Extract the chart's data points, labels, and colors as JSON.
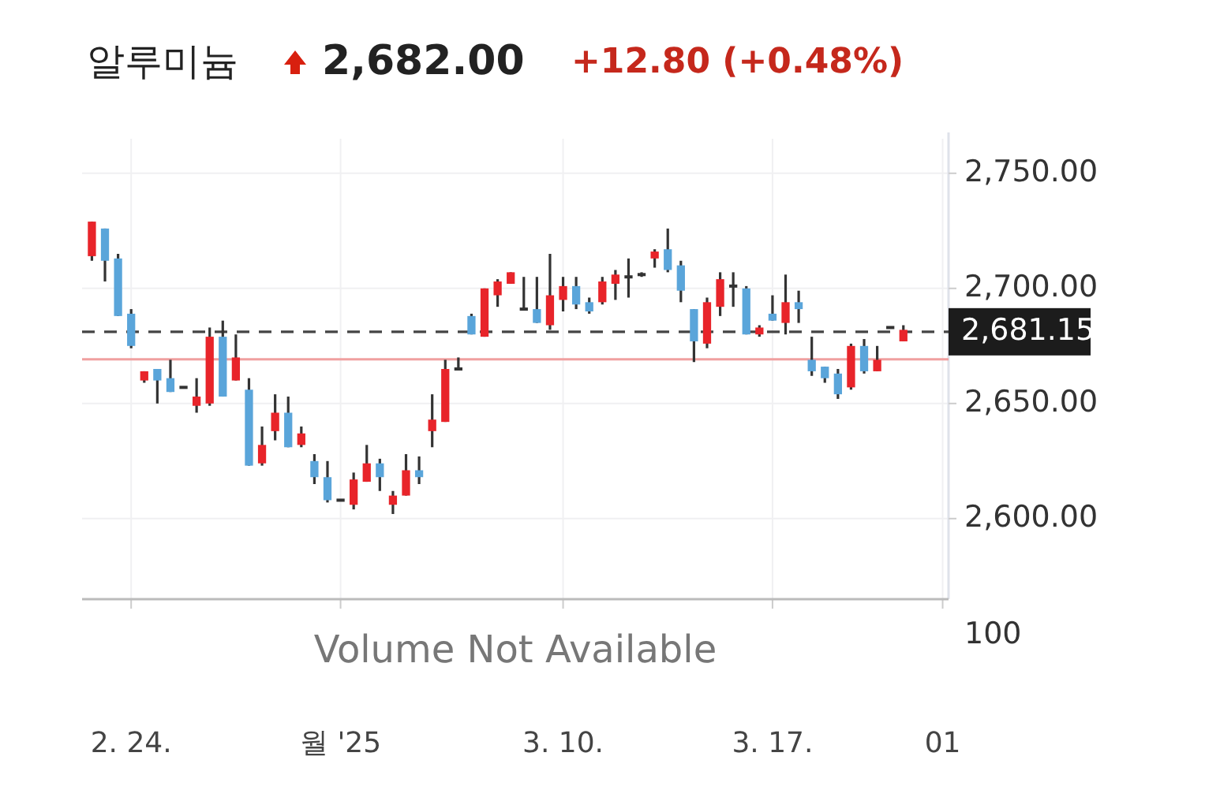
{
  "chart_data": [
    {
      "type": "candlestick",
      "title": "알루미늄",
      "annotations": [
        "2,682.00",
        "+12.80 (+0.48%)"
      ],
      "categories": [
        null,
        null,
        null,
        "2. 24.",
        null,
        null,
        null,
        null,
        null,
        null,
        null,
        null,
        null,
        null,
        null,
        null,
        null,
        null,
        null,
        "월 '25",
        null,
        null,
        null,
        null,
        null,
        null,
        null,
        null,
        null,
        null,
        null,
        null,
        null,
        null,
        null,
        null,
        "3. 10.",
        null,
        null,
        null,
        null,
        null,
        null,
        null,
        null,
        null,
        null,
        null,
        null,
        null,
        null,
        null,
        "3. 17.",
        null,
        null,
        null,
        null,
        null,
        null,
        null,
        null,
        null,
        null,
        null,
        null,
        "01"
      ],
      "ohlc": [
        [
          2714,
          2729,
          2712,
          2729
        ],
        [
          2726,
          2726,
          2703,
          2712
        ],
        [
          2713,
          2715,
          2688,
          2688
        ],
        [
          2689,
          2691,
          2674,
          2675
        ],
        [
          2660,
          2664,
          2659,
          2664
        ],
        [
          2665,
          2665,
          2650,
          2660
        ],
        [
          2661,
          2669,
          2655,
          2655
        ],
        [
          2657,
          2657,
          2657,
          2657
        ],
        [
          2649,
          2661,
          2646,
          2653
        ],
        [
          2650,
          2683,
          2649,
          2679
        ],
        [
          2679,
          2686,
          2653,
          2653
        ],
        [
          2660,
          2680,
          2660,
          2670
        ],
        [
          2656,
          2661,
          2623,
          2623
        ],
        [
          2624,
          2640,
          2623,
          2632
        ],
        [
          2638,
          2654,
          2634,
          2646
        ],
        [
          2646,
          2653,
          2631,
          2631
        ],
        [
          2632,
          2640,
          2631,
          2637
        ],
        [
          2625,
          2628,
          2615,
          2618
        ],
        [
          2618,
          2625,
          2607,
          2608
        ],
        [
          2608,
          2608,
          2608,
          2608
        ],
        [
          2606,
          2620,
          2604,
          2617
        ],
        [
          2616,
          2632,
          2616,
          2624
        ],
        [
          2624,
          2626,
          2612,
          2618
        ],
        [
          2606,
          2612,
          2602,
          2610
        ],
        [
          2610,
          2628,
          2610,
          2621
        ],
        [
          2621,
          2627,
          2615,
          2618
        ],
        [
          2638,
          2654,
          2631,
          2643
        ],
        [
          2642,
          2669,
          2642,
          2665
        ],
        [
          2665,
          2670,
          2665,
          2665
        ],
        [
          2688,
          2689,
          2680,
          2680
        ],
        [
          2679,
          2700,
          2679,
          2700
        ],
        [
          2697,
          2704,
          2692,
          2703
        ],
        [
          2702,
          2707,
          2702,
          2707
        ],
        [
          2691,
          2705,
          2691,
          2691
        ],
        [
          2691,
          2705,
          2685,
          2685
        ],
        [
          2684,
          2715,
          2682,
          2697
        ],
        [
          2695,
          2705,
          2690,
          2701
        ],
        [
          2701,
          2705,
          2691,
          2693
        ],
        [
          2694,
          2696,
          2689,
          2690
        ],
        [
          2694,
          2705,
          2693,
          2703
        ],
        [
          2702,
          2708,
          2695,
          2706
        ],
        [
          2705,
          2713,
          2696,
          2705
        ],
        [
          2706,
          2707,
          2705,
          2706
        ],
        [
          2713,
          2717,
          2709,
          2716
        ],
        [
          2717,
          2726,
          2707,
          2708
        ],
        [
          2710,
          2712,
          2694,
          2699
        ],
        [
          2691,
          2691,
          2668,
          2677
        ],
        [
          2676,
          2696,
          2674,
          2694
        ],
        [
          2692,
          2707,
          2688,
          2704
        ],
        [
          2701,
          2707,
          2692,
          2701
        ],
        [
          2700,
          2701,
          2680,
          2680
        ],
        [
          2680,
          2684,
          2679,
          2683
        ],
        [
          2689,
          2697,
          2686,
          2686
        ],
        [
          2685,
          2706,
          2680,
          2694
        ],
        [
          2694,
          2699,
          2685,
          2691
        ],
        [
          2669,
          2679,
          2662,
          2664
        ],
        [
          2666,
          2666,
          2659,
          2661
        ],
        [
          2663,
          2665,
          2652,
          2654
        ],
        [
          2657,
          2676,
          2656,
          2675
        ],
        [
          2675,
          2678,
          2663,
          2664
        ],
        [
          2664,
          2675,
          2664,
          2669
        ],
        [
          2683,
          2683,
          2683,
          2683
        ],
        [
          2677,
          2684,
          2677,
          2682
        ],
        null,
        null,
        null
      ],
      "colors": [
        "#e8242a",
        "#5aa5da",
        "#5aa5da",
        "#5aa5da",
        "#e8242a",
        "#5aa5da",
        "#5aa5da",
        "#333333",
        "#e8242a",
        "#e8242a",
        "#5aa5da",
        "#e8242a",
        "#5aa5da",
        "#e8242a",
        "#e8242a",
        "#5aa5da",
        "#e8242a",
        "#5aa5da",
        "#5aa5da",
        "#333333",
        "#e8242a",
        "#e8242a",
        "#5aa5da",
        "#e8242a",
        "#e8242a",
        "#5aa5da",
        "#e8242a",
        "#e8242a",
        "#333333",
        "#5aa5da",
        "#e8242a",
        "#e8242a",
        "#e8242a",
        "#333333",
        "#5aa5da",
        "#e8242a",
        "#e8242a",
        "#5aa5da",
        "#5aa5da",
        "#e8242a",
        "#e8242a",
        "#333333",
        "#333333",
        "#e8242a",
        "#5aa5da",
        "#5aa5da",
        "#5aa5da",
        "#e8242a",
        "#e8242a",
        "#333333",
        "#5aa5da",
        "#e8242a",
        "#5aa5da",
        "#e8242a",
        "#5aa5da",
        "#5aa5da",
        "#5aa5da",
        "#5aa5da",
        "#e8242a",
        "#5aa5da",
        "#e8242a",
        "#333333",
        "#e8242a",
        null,
        null,
        null
      ],
      "ylim": [
        2565,
        2765
      ],
      "yticks": [
        {
          "value": 2600,
          "label": "2,600.00"
        },
        {
          "value": 2650,
          "label": "2,650.00"
        },
        {
          "value": 2700,
          "label": "2,700.00"
        },
        {
          "value": 2750,
          "label": "2,750.00"
        }
      ],
      "ref_lines": [
        {
          "axis": "y",
          "value": 2681.15,
          "label": "2,681.15",
          "color": "#444444",
          "line_style": "dashed"
        },
        {
          "axis": "y",
          "value": 2669.2,
          "color": "#f0a0a0",
          "line_style": "solid"
        }
      ],
      "grid": true
    },
    {
      "type": "other",
      "annotations": [
        "Volume Not Available",
        "100"
      ]
    }
  ]
}
